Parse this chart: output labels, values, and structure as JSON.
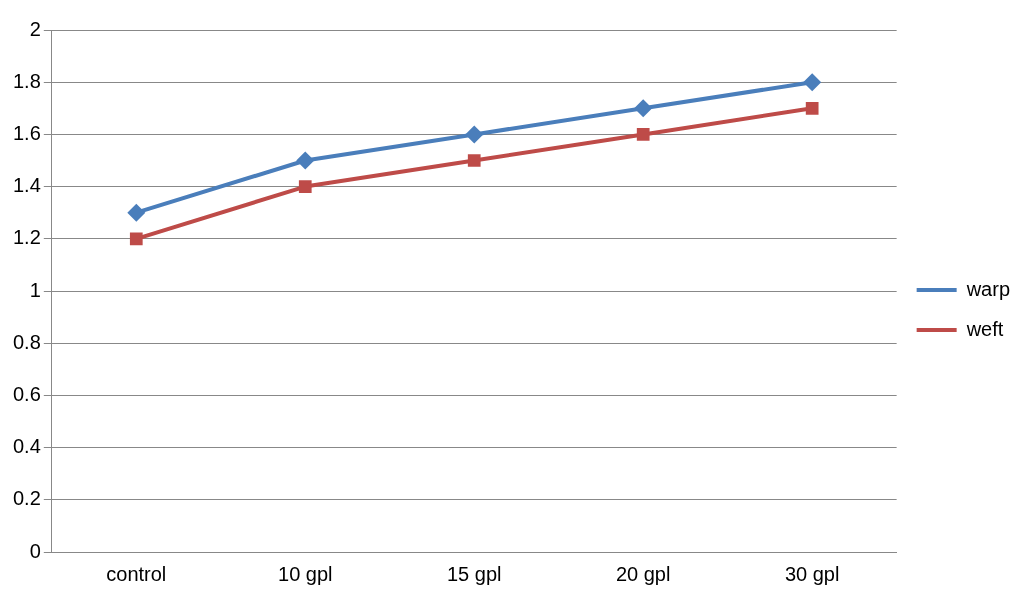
{
  "chart_data": {
    "type": "line",
    "categories": [
      "control",
      "10 gpl",
      "15 gpl",
      "20 gpl",
      "30 gpl"
    ],
    "series": [
      {
        "name": "warp",
        "color": "#4a7ebb",
        "marker": "diamond",
        "values": [
          1.3,
          1.5,
          1.6,
          1.7,
          1.8
        ]
      },
      {
        "name": "weft",
        "color": "#be4b48",
        "marker": "square",
        "values": [
          1.2,
          1.4,
          1.5,
          1.6,
          1.7
        ]
      }
    ],
    "ylim": [
      0,
      2
    ],
    "yticks": [
      0,
      0.2,
      0.4,
      0.6,
      0.8,
      1,
      1.2,
      1.4,
      1.6,
      1.8,
      2
    ],
    "grid": "y",
    "legend": "right",
    "line_style": "solid"
  }
}
